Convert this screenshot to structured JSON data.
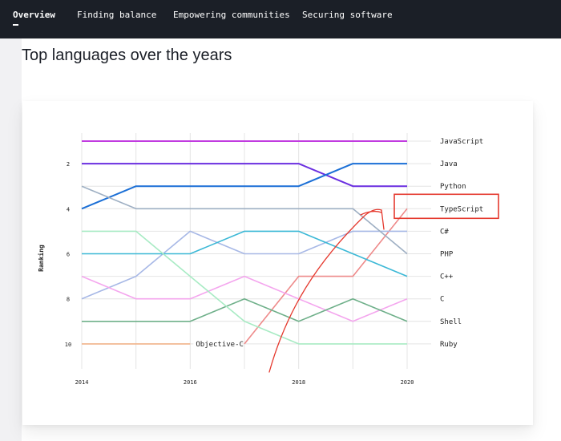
{
  "nav": {
    "items": [
      {
        "label": "Overview",
        "active": true
      },
      {
        "label": "Finding balance",
        "active": false
      },
      {
        "label": "Empowering communities",
        "active": false
      },
      {
        "label": "Securing software",
        "active": false
      }
    ]
  },
  "page": {
    "title": "Top languages over the years"
  },
  "highlight_color": "#e53a2f",
  "chart_data": {
    "type": "line",
    "title": "",
    "xlabel": "",
    "ylabel": "Ranking",
    "x": [
      2014,
      2015,
      2016,
      2017,
      2018,
      2019,
      2020
    ],
    "x_ticks": [
      2014,
      2016,
      2018,
      2020
    ],
    "y_ticks": [
      2,
      4,
      6,
      8,
      10
    ],
    "ylim": [
      1,
      11
    ],
    "y_inverted": true,
    "grid": true,
    "series": [
      {
        "name": "JavaScript",
        "color": "#c13be0",
        "values": [
          1,
          1,
          1,
          1,
          1,
          1,
          1
        ]
      },
      {
        "name": "Python",
        "color": "#6a2ee0",
        "values": [
          2,
          2,
          2,
          2,
          2,
          3,
          3
        ]
      },
      {
        "name": "Java",
        "color": "#1b6fd6",
        "values": [
          4,
          3,
          3,
          3,
          3,
          2,
          2
        ]
      },
      {
        "name": "TypeScript",
        "color": "#ee8a8a",
        "values": [
          null,
          null,
          null,
          10,
          7,
          7,
          4
        ]
      },
      {
        "name": "C#",
        "color": "#a7b8e6",
        "values": [
          8,
          7,
          5,
          6,
          6,
          5,
          5
        ]
      },
      {
        "name": "PHP",
        "color": "#9eafc3",
        "values": [
          3,
          4,
          4,
          4,
          4,
          4,
          6
        ]
      },
      {
        "name": "C++",
        "color": "#3bb8d6",
        "values": [
          6,
          6,
          6,
          5,
          5,
          6,
          7
        ]
      },
      {
        "name": "C",
        "color": "#f4a6ee",
        "values": [
          7,
          8,
          8,
          7,
          8,
          9,
          8
        ]
      },
      {
        "name": "Shell",
        "color": "#6fb08a",
        "values": [
          9,
          9,
          9,
          8,
          9,
          8,
          9
        ]
      },
      {
        "name": "Ruby",
        "color": "#a8ebc4",
        "values": [
          5,
          5,
          7,
          9,
          10,
          10,
          10
        ]
      },
      {
        "name": "Objective-C",
        "color": "#f2b48a",
        "values": [
          10,
          10,
          10,
          null,
          null,
          null,
          null
        ]
      }
    ],
    "annotations": [
      {
        "text": "Objective-C",
        "x": 2016,
        "y": 10
      }
    ]
  }
}
